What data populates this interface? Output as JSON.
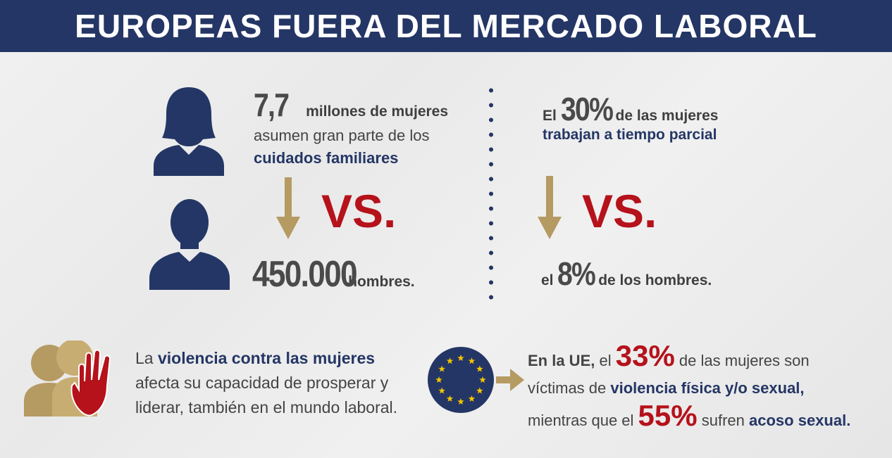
{
  "title": "EUROPEAS FUERA DEL MERCADO LABORAL",
  "left": {
    "women_number": "7,7",
    "women_text1": "millones de mujeres",
    "women_text2": "asumen gran parte de los",
    "women_highlight": "cuidados familiares",
    "vs": "VS.",
    "men_number": "450.000",
    "men_text": "hombres."
  },
  "right": {
    "prefix": "El",
    "women_pct": "30%",
    "women_text": "de las mujeres",
    "women_highlight": "trabajan a tiempo parcial",
    "vs": "VS.",
    "men_prefix": "el",
    "men_pct": "8%",
    "men_text": "de los hombres."
  },
  "violence": {
    "line1_pre": "La",
    "line1_highlight": "violencia contra las mujeres",
    "line2": "afecta su capacidad de prosperar y",
    "line3": "liderar, también en el mundo laboral."
  },
  "eu": {
    "l1_bold": "En la UE,",
    "l1_pre": "el",
    "pct1": "33%",
    "l1_post": "de las mujeres son",
    "l2_pre": "víctimas de",
    "l2_highlight": "violencia física y/o sexual,",
    "l3_pre": "mientras que el",
    "pct2": "55%",
    "l3_mid": "sufren",
    "l3_highlight": "acoso sexual."
  },
  "colors": {
    "navy": "#243665",
    "gold": "#b59a62",
    "red": "#b5121b"
  },
  "icons": [
    "woman-icon",
    "man-icon",
    "arrow-down-icon",
    "people-hand-icon",
    "eu-flag-icon",
    "arrow-right-icon"
  ]
}
